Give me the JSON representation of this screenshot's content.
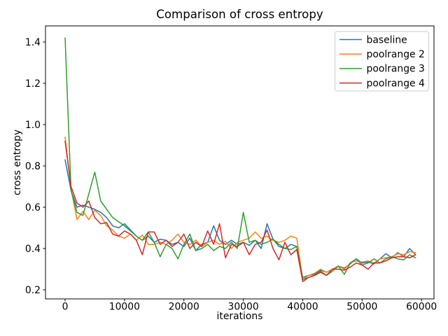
{
  "figure": {
    "title": "Comparison of cross entropy",
    "xlabel": "iterations",
    "ylabel": "cross entropy"
  },
  "chart_data": {
    "type": "line",
    "title": "Comparison of cross entropy",
    "xlabel": "iterations",
    "ylabel": "cross entropy",
    "grid": false,
    "legend_position": "upper right",
    "xlim": [
      -3300,
      62100
    ],
    "ylim": [
      0.156,
      1.478
    ],
    "x_ticks": [
      0,
      10000,
      20000,
      30000,
      40000,
      50000,
      60000
    ],
    "y_ticks": [
      0.2,
      0.4,
      0.6,
      0.8,
      1.0,
      1.2,
      1.4
    ],
    "x": [
      0,
      1000,
      2000,
      3000,
      4000,
      5000,
      6000,
      7000,
      8000,
      9000,
      10000,
      11000,
      12000,
      13000,
      14000,
      15000,
      16000,
      17000,
      18000,
      19000,
      20000,
      21000,
      22000,
      23000,
      24000,
      25000,
      26000,
      27000,
      28000,
      29000,
      30000,
      31000,
      32000,
      33000,
      34000,
      35000,
      36000,
      37000,
      38000,
      39000,
      40000,
      41000,
      42000,
      43000,
      44000,
      45000,
      46000,
      47000,
      48000,
      49000,
      50000,
      51000,
      52000,
      53000,
      54000,
      55000,
      56000,
      57000,
      58000,
      59000
    ],
    "series": [
      {
        "name": "baseline",
        "color": "#1f77b4",
        "values": [
          0.83,
          0.68,
          0.6,
          0.61,
          0.6,
          0.59,
          0.575,
          0.55,
          0.51,
          0.5,
          0.52,
          0.49,
          0.46,
          0.44,
          0.46,
          0.43,
          0.445,
          0.44,
          0.42,
          0.43,
          0.41,
          0.45,
          0.39,
          0.42,
          0.43,
          0.51,
          0.44,
          0.42,
          0.44,
          0.42,
          0.43,
          0.415,
          0.44,
          0.4,
          0.52,
          0.445,
          0.41,
          0.4,
          0.42,
          0.41,
          0.26,
          0.27,
          0.275,
          0.295,
          0.285,
          0.3,
          0.315,
          0.305,
          0.325,
          0.35,
          0.33,
          0.335,
          0.325,
          0.35,
          0.375,
          0.355,
          0.38,
          0.36,
          0.4,
          0.37
        ]
      },
      {
        "name": "poolrange 2",
        "color": "#ff7f0e",
        "values": [
          0.94,
          0.69,
          0.54,
          0.58,
          0.54,
          0.585,
          0.56,
          0.51,
          0.49,
          0.46,
          0.45,
          0.47,
          0.44,
          0.465,
          0.42,
          0.42,
          0.43,
          0.42,
          0.44,
          0.47,
          0.43,
          0.42,
          0.44,
          0.41,
          0.43,
          0.44,
          0.42,
          0.435,
          0.4,
          0.43,
          0.44,
          0.45,
          0.48,
          0.45,
          0.46,
          0.44,
          0.43,
          0.44,
          0.46,
          0.45,
          0.25,
          0.27,
          0.28,
          0.3,
          0.285,
          0.3,
          0.315,
          0.3,
          0.33,
          0.34,
          0.335,
          0.34,
          0.33,
          0.35,
          0.355,
          0.36,
          0.375,
          0.37,
          0.385,
          0.38
        ]
      },
      {
        "name": "poolrange 3",
        "color": "#2ca02c",
        "values": [
          1.42,
          0.68,
          0.575,
          0.56,
          0.665,
          0.77,
          0.63,
          0.59,
          0.55,
          0.53,
          0.51,
          0.485,
          0.46,
          0.44,
          0.48,
          0.43,
          0.36,
          0.42,
          0.4,
          0.35,
          0.42,
          0.47,
          0.39,
          0.4,
          0.42,
          0.39,
          0.41,
          0.4,
          0.43,
          0.4,
          0.575,
          0.43,
          0.44,
          0.42,
          0.43,
          0.445,
          0.42,
          0.4,
          0.395,
          0.41,
          0.25,
          0.26,
          0.27,
          0.29,
          0.27,
          0.29,
          0.315,
          0.275,
          0.33,
          0.35,
          0.32,
          0.33,
          0.35,
          0.33,
          0.35,
          0.36,
          0.35,
          0.345,
          0.37,
          0.355
        ]
      },
      {
        "name": "poolrange 4",
        "color": "#d62728",
        "values": [
          0.92,
          0.7,
          0.62,
          0.6,
          0.63,
          0.55,
          0.52,
          0.525,
          0.47,
          0.46,
          0.485,
          0.47,
          0.44,
          0.37,
          0.48,
          0.48,
          0.42,
          0.44,
          0.41,
          0.43,
          0.47,
          0.4,
          0.43,
          0.41,
          0.485,
          0.42,
          0.52,
          0.355,
          0.42,
          0.41,
          0.43,
          0.37,
          0.42,
          0.43,
          0.49,
          0.4,
          0.345,
          0.43,
          0.37,
          0.395,
          0.24,
          0.26,
          0.27,
          0.285,
          0.27,
          0.3,
          0.3,
          0.295,
          0.31,
          0.33,
          0.32,
          0.3,
          0.33,
          0.33,
          0.34,
          0.355,
          0.36,
          0.36,
          0.355,
          0.37
        ]
      }
    ]
  }
}
